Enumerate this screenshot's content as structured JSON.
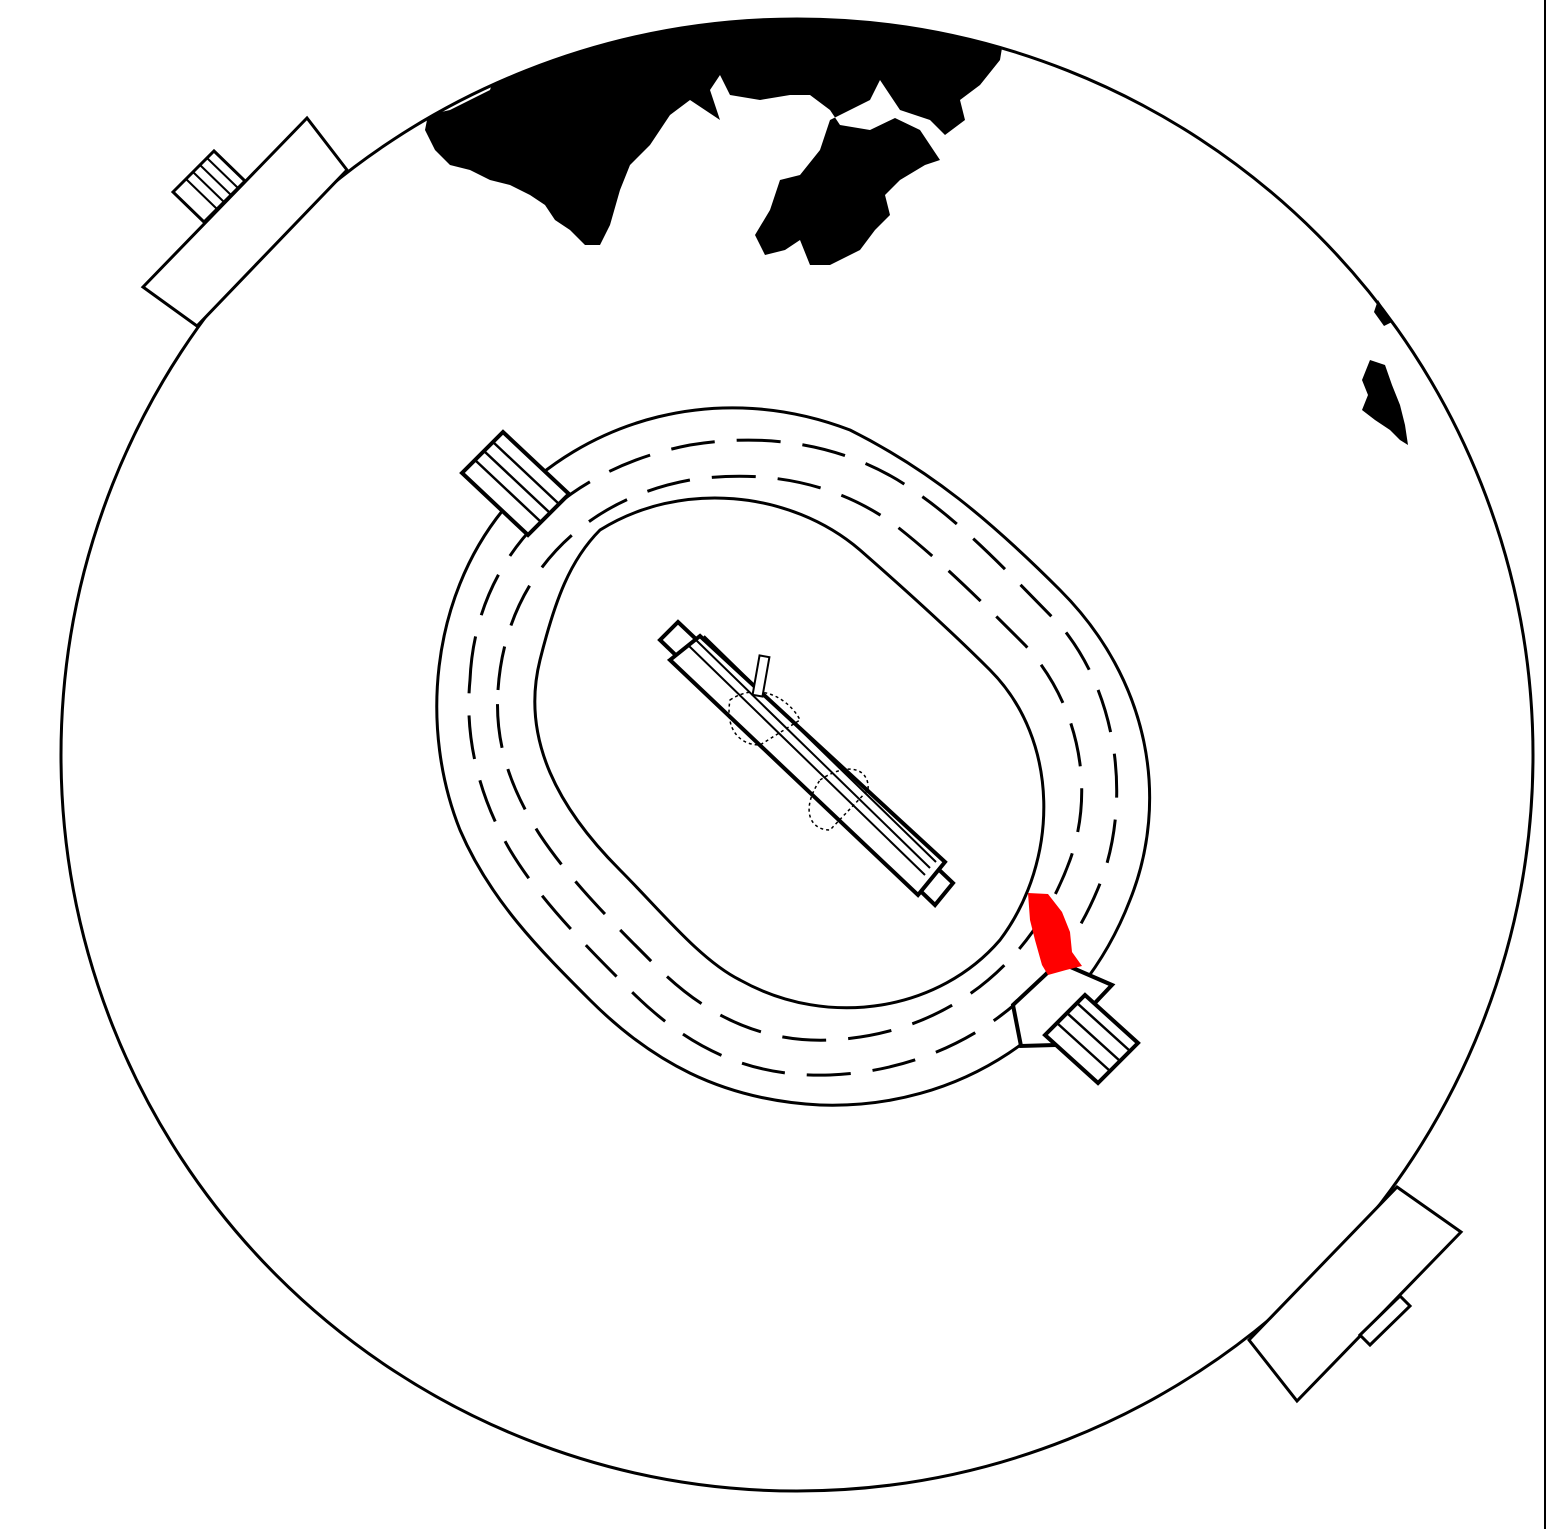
{
  "diagram": {
    "kind": "cricket-ground-plan",
    "colors": {
      "ink": "#000000",
      "background": "#ffffff",
      "highlight": "#ff0000"
    },
    "elements": [
      "boundary-circle",
      "inner-circle",
      "dashed-track",
      "pitch-strip",
      "sightscreens",
      "scoreboards",
      "foliage",
      "highlight-marker"
    ]
  }
}
